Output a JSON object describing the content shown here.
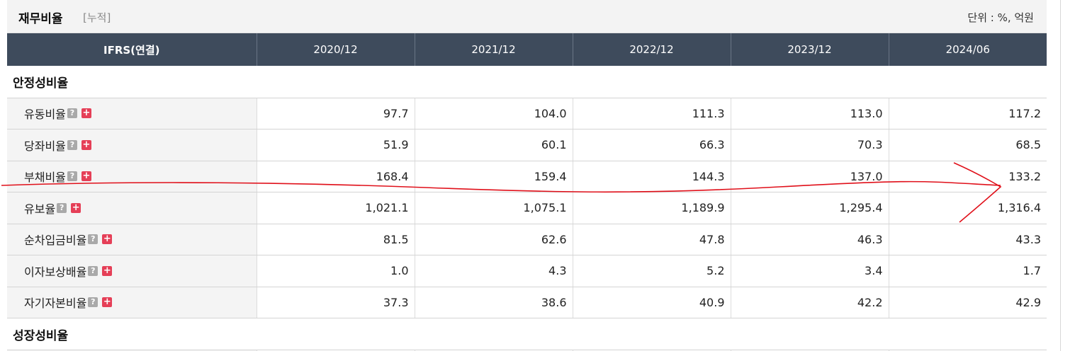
{
  "header": {
    "title": "재무비율",
    "subtitle": "[누적]",
    "unit": "단위 : %, 억원"
  },
  "table": {
    "corner_label": "IFRS(연결)",
    "columns": [
      "2020/12",
      "2021/12",
      "2022/12",
      "2023/12",
      "2024/06"
    ],
    "sections": [
      {
        "title": "안정성비율",
        "rows": [
          {
            "label": "유동비율",
            "values": [
              "97.7",
              "104.0",
              "111.3",
              "113.0",
              "117.2"
            ]
          },
          {
            "label": "당좌비율",
            "values": [
              "51.9",
              "60.1",
              "66.3",
              "70.3",
              "68.5"
            ]
          },
          {
            "label": "부채비율",
            "values": [
              "168.4",
              "159.4",
              "144.3",
              "137.0",
              "133.2"
            ]
          },
          {
            "label": "유보율",
            "values": [
              "1,021.1",
              "1,075.1",
              "1,189.9",
              "1,295.4",
              "1,316.4"
            ]
          },
          {
            "label": "순차입금비율",
            "values": [
              "81.5",
              "62.6",
              "47.8",
              "46.3",
              "43.3"
            ]
          },
          {
            "label": "이자보상배율",
            "values": [
              "1.0",
              "4.3",
              "5.2",
              "3.4",
              "1.7"
            ]
          },
          {
            "label": "자기자본비율",
            "values": [
              "37.3",
              "38.6",
              "40.9",
              "42.2",
              "42.9"
            ]
          }
        ]
      },
      {
        "title": "성장성비율",
        "rows": []
      }
    ]
  },
  "icons": {
    "help": "question-icon",
    "expand": "plus-icon"
  },
  "colors": {
    "header_bg": "#3e4b5c",
    "label_bg": "#f4f4f4",
    "plus_icon": "#e53f57",
    "help_icon": "#a9a9a9",
    "annotation": "#e0101a"
  }
}
